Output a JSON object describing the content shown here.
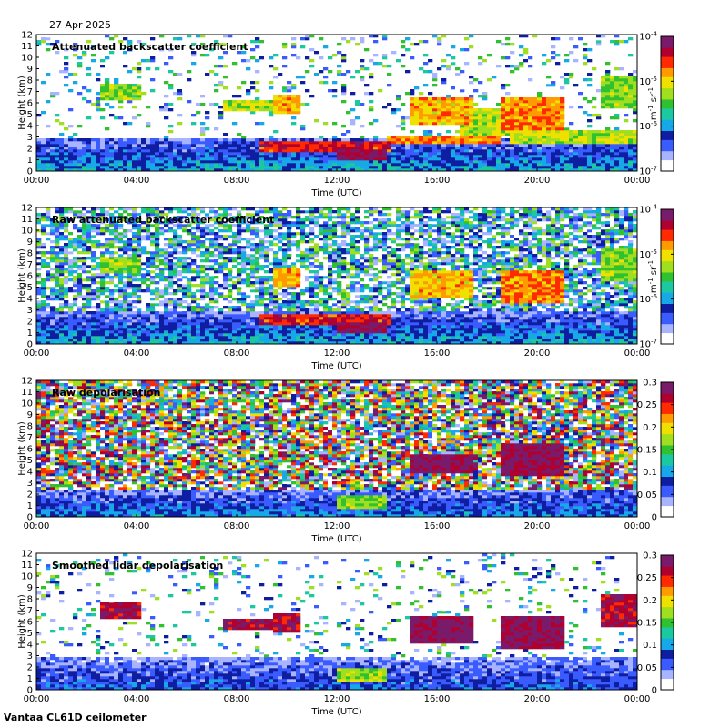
{
  "date": "27 Apr 2025",
  "station": "Vantaa CL61D ceilometer",
  "colors": {
    "background": "#ffffff",
    "axis": "#000000"
  },
  "chart_data": [
    {
      "type": "heatmap",
      "title": "Attenuated backscatter coefficient",
      "xlabel": "Time (UTC)",
      "ylabel": "Height (km)",
      "x_ticks": [
        "00:00",
        "04:00",
        "08:00",
        "12:00",
        "16:00",
        "20:00",
        "00:00"
      ],
      "x_range_hours": [
        0,
        24
      ],
      "y_ticks": [
        0,
        1,
        2,
        3,
        4,
        5,
        6,
        7,
        8,
        9,
        10,
        11,
        12
      ],
      "y_range_km": [
        0,
        12
      ],
      "colorbar": {
        "scale": "log",
        "range": [
          1e-07,
          0.0001
        ],
        "ticks": [
          {
            "mant": "10",
            "exp": "-7"
          },
          {
            "mant": "10",
            "exp": "-6"
          },
          {
            "mant": "10",
            "exp": "-5"
          },
          {
            "mant": "10",
            "exp": "-4"
          }
        ],
        "unit": {
          "m": "m",
          "m_exp": "-1",
          "sr": "sr",
          "sr_exp": "-1"
        }
      },
      "noise_level": 0.15,
      "features": [
        {
          "kind": "boundary_layer",
          "t": [
            0,
            24
          ],
          "h": [
            0,
            2.9
          ],
          "value": 0.25
        },
        {
          "kind": "cloud",
          "t": [
            2.5,
            4.2
          ],
          "h": [
            6.3,
            7.8
          ],
          "value": 0.55
        },
        {
          "kind": "cloud",
          "t": [
            7.5,
            9.5
          ],
          "h": [
            5.2,
            6.2
          ],
          "value": 0.6
        },
        {
          "kind": "cloud",
          "t": [
            9.5,
            10.5
          ],
          "h": [
            5.0,
            6.8
          ],
          "value": 0.7
        },
        {
          "kind": "cloud",
          "t": [
            9.0,
            14.2
          ],
          "h": [
            1.7,
            2.6
          ],
          "value": 0.85
        },
        {
          "kind": "cloud",
          "t": [
            12.0,
            14.0
          ],
          "h": [
            1.0,
            2.0
          ],
          "value": 0.95
        },
        {
          "kind": "cloud",
          "t": [
            14.0,
            18.5
          ],
          "h": [
            2.4,
            3.0
          ],
          "value": 0.75
        },
        {
          "kind": "cloud",
          "t": [
            15.0,
            17.5
          ],
          "h": [
            4.0,
            6.5
          ],
          "value": 0.7
        },
        {
          "kind": "cloud",
          "t": [
            17.0,
            19.0
          ],
          "h": [
            3.2,
            5.5
          ],
          "value": 0.6
        },
        {
          "kind": "cloud",
          "t": [
            18.5,
            21.0
          ],
          "h": [
            3.5,
            6.6
          ],
          "value": 0.75
        },
        {
          "kind": "cloud",
          "t": [
            19.0,
            24.0
          ],
          "h": [
            2.5,
            3.6
          ],
          "value": 0.6
        },
        {
          "kind": "cloud",
          "t": [
            22.5,
            24.0
          ],
          "h": [
            5.5,
            8.5
          ],
          "value": 0.55
        }
      ]
    },
    {
      "type": "heatmap",
      "title": "Raw attenuated backscatter coefficient",
      "xlabel": "Time (UTC)",
      "ylabel": "Height (km)",
      "x_ticks": [
        "00:00",
        "04:00",
        "08:00",
        "12:00",
        "16:00",
        "20:00",
        "00:00"
      ],
      "x_range_hours": [
        0,
        24
      ],
      "y_ticks": [
        0,
        1,
        2,
        3,
        4,
        5,
        6,
        7,
        8,
        9,
        10,
        11,
        12
      ],
      "y_range_km": [
        0,
        12
      ],
      "colorbar": {
        "scale": "log",
        "range": [
          1e-07,
          0.0001
        ],
        "ticks": [
          {
            "mant": "10",
            "exp": "-7"
          },
          {
            "mant": "10",
            "exp": "-6"
          },
          {
            "mant": "10",
            "exp": "-5"
          },
          {
            "mant": "10",
            "exp": "-4"
          }
        ],
        "unit": {
          "m": "m",
          "m_exp": "-1",
          "sr": "sr",
          "sr_exp": "-1"
        }
      },
      "noise_level": 0.8,
      "features": [
        {
          "kind": "boundary_layer",
          "t": [
            0,
            24
          ],
          "h": [
            0,
            2.9
          ],
          "value": 0.25
        },
        {
          "kind": "cloud",
          "t": [
            2.5,
            4.2
          ],
          "h": [
            6.3,
            7.8
          ],
          "value": 0.55
        },
        {
          "kind": "cloud",
          "t": [
            9.5,
            10.5
          ],
          "h": [
            5.0,
            6.8
          ],
          "value": 0.7
        },
        {
          "kind": "cloud",
          "t": [
            9.0,
            14.2
          ],
          "h": [
            1.7,
            2.6
          ],
          "value": 0.85
        },
        {
          "kind": "cloud",
          "t": [
            12.0,
            14.0
          ],
          "h": [
            1.0,
            2.0
          ],
          "value": 0.95
        },
        {
          "kind": "cloud",
          "t": [
            15.0,
            17.5
          ],
          "h": [
            4.0,
            6.5
          ],
          "value": 0.7
        },
        {
          "kind": "cloud",
          "t": [
            18.5,
            21.0
          ],
          "h": [
            3.5,
            6.6
          ],
          "value": 0.75
        },
        {
          "kind": "cloud",
          "t": [
            22.5,
            24.0
          ],
          "h": [
            5.5,
            8.5
          ],
          "value": 0.55
        }
      ]
    },
    {
      "type": "heatmap",
      "title": "Raw depolarisation",
      "xlabel": "Time (UTC)",
      "ylabel": "Height (km)",
      "x_ticks": [
        "00:00",
        "04:00",
        "08:00",
        "12:00",
        "16:00",
        "20:00",
        "00:00"
      ],
      "x_range_hours": [
        0,
        24
      ],
      "y_ticks": [
        0,
        1,
        2,
        3,
        4,
        5,
        6,
        7,
        8,
        9,
        10,
        11,
        12
      ],
      "y_range_km": [
        0,
        12
      ],
      "colorbar": {
        "scale": "linear",
        "range": [
          0,
          0.3
        ],
        "ticks": [
          {
            "mant": "0"
          },
          {
            "mant": "0.05"
          },
          {
            "mant": "0.1"
          },
          {
            "mant": "0.15"
          },
          {
            "mant": "0.2"
          },
          {
            "mant": "0.25"
          },
          {
            "mant": "0.3"
          }
        ]
      },
      "noise_level": 0.9,
      "features": [
        {
          "kind": "boundary_layer",
          "t": [
            0,
            24
          ],
          "h": [
            0,
            2.5
          ],
          "value": 0.2
        },
        {
          "kind": "cloud",
          "t": [
            12.0,
            14.0
          ],
          "h": [
            0.8,
            1.8
          ],
          "value": 0.55
        },
        {
          "kind": "cloud",
          "t": [
            15.0,
            17.5
          ],
          "h": [
            3.8,
            5.5
          ],
          "value": 0.95
        },
        {
          "kind": "cloud",
          "t": [
            18.5,
            21.0
          ],
          "h": [
            3.5,
            6.5
          ],
          "value": 0.95
        }
      ]
    },
    {
      "type": "heatmap",
      "title": "Smoothed lidar depolarisation",
      "xlabel": "Time (UTC)",
      "ylabel": "Height (km)",
      "x_ticks": [
        "00:00",
        "04:00",
        "08:00",
        "12:00",
        "16:00",
        "20:00",
        "00:00"
      ],
      "x_range_hours": [
        0,
        24
      ],
      "y_ticks": [
        0,
        1,
        2,
        3,
        4,
        5,
        6,
        7,
        8,
        9,
        10,
        11,
        12
      ],
      "y_range_km": [
        0,
        12
      ],
      "colorbar": {
        "scale": "linear",
        "range": [
          0,
          0.3
        ],
        "ticks": [
          {
            "mant": "0"
          },
          {
            "mant": "0.05"
          },
          {
            "mant": "0.1"
          },
          {
            "mant": "0.15"
          },
          {
            "mant": "0.2"
          },
          {
            "mant": "0.25"
          },
          {
            "mant": "0.3"
          }
        ]
      },
      "noise_level": 0.12,
      "features": [
        {
          "kind": "boundary_layer",
          "t": [
            0,
            24
          ],
          "h": [
            0,
            2.8
          ],
          "value": 0.15
        },
        {
          "kind": "cloud",
          "t": [
            2.5,
            4.2
          ],
          "h": [
            6.3,
            7.8
          ],
          "value": 0.9
        },
        {
          "kind": "cloud",
          "t": [
            7.5,
            9.5
          ],
          "h": [
            5.2,
            6.2
          ],
          "value": 0.9
        },
        {
          "kind": "cloud",
          "t": [
            9.5,
            10.5
          ],
          "h": [
            5.0,
            6.8
          ],
          "value": 0.9
        },
        {
          "kind": "cloud",
          "t": [
            12.0,
            14.0
          ],
          "h": [
            0.8,
            1.8
          ],
          "value": 0.6
        },
        {
          "kind": "cloud",
          "t": [
            15.0,
            17.5
          ],
          "h": [
            4.0,
            6.5
          ],
          "value": 0.95
        },
        {
          "kind": "cloud",
          "t": [
            18.5,
            21.0
          ],
          "h": [
            3.5,
            6.6
          ],
          "value": 0.95
        },
        {
          "kind": "cloud",
          "t": [
            22.5,
            24.0
          ],
          "h": [
            5.5,
            8.5
          ],
          "value": 0.9
        }
      ]
    }
  ]
}
